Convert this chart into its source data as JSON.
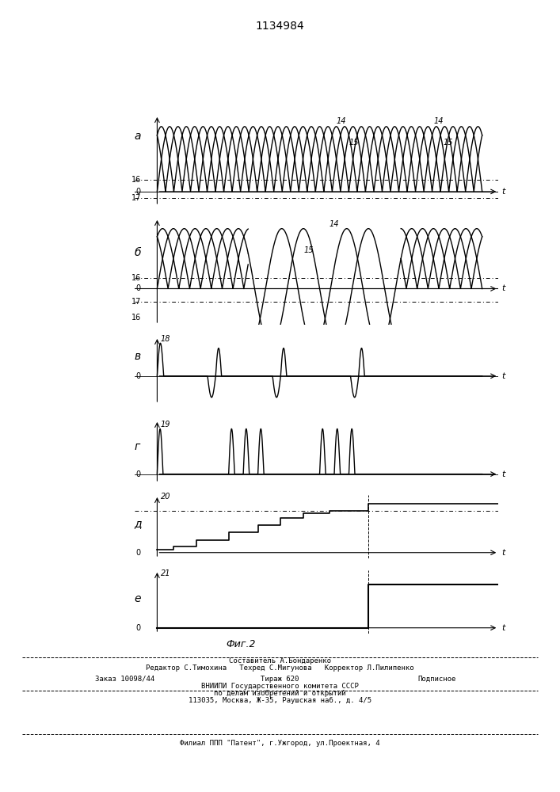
{
  "title": "1134984",
  "fig_label": "Фиг.2",
  "background_color": "#ffffff",
  "bottom_text_line1": "Составитель А.Бондаренко",
  "bottom_text_line2": "Редактор С.Тимохина   Техред С.Мигунова   Корректор Л.Пилипенко",
  "bottom_text_line3a": "Заказ 10098/44",
  "bottom_text_line3b": "Тираж 620",
  "bottom_text_line3c": "Подписное",
  "bottom_text_line4": "ВНИИПИ Государственного комитета СССР",
  "bottom_text_line5": "по делам изобретений и открытий",
  "bottom_text_line6": "113035, Москва, Ж-35, Раушская наб., д. 4/5",
  "bottom_text_line7": "Филиал ППП \"Патент\", г.Ужгород, ул.Проектная, 4"
}
